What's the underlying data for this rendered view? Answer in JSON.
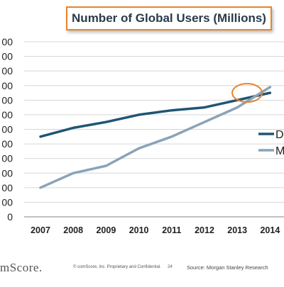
{
  "header": {
    "title": "Number of Global Users (Millions)"
  },
  "footer": {
    "logo": "mScore.",
    "copyright": "© comScore, Inc. Proprietary and Confidential.",
    "page": "24",
    "source": "Source: Morgan Stanley Research"
  },
  "legend": {
    "items": [
      {
        "label": "D",
        "color": "#1f5575"
      },
      {
        "label": "M",
        "color": "#8aa3b8"
      }
    ]
  },
  "chart_data": {
    "type": "line",
    "title": "Number of Global Users (Millions)",
    "x": [
      "2007",
      "2008",
      "2009",
      "2010",
      "2011",
      "2012",
      "2013",
      "2014"
    ],
    "y_tick_labels": [
      "0",
      "00",
      "00",
      "00",
      "00",
      "00",
      "00",
      "00",
      "00",
      "00",
      "00",
      "00",
      "00"
    ],
    "y_index_range": [
      0,
      12
    ],
    "grid": true,
    "legend_position": "right",
    "series": [
      {
        "name": "D",
        "color": "#1f5575",
        "values": [
          5.5,
          6.1,
          6.5,
          7.0,
          7.3,
          7.5,
          8.0,
          8.5
        ]
      },
      {
        "name": "M",
        "color": "#8aa3b8",
        "values": [
          2.0,
          3.0,
          3.5,
          4.7,
          5.5,
          6.5,
          7.5,
          8.9
        ]
      }
    ],
    "annotation": {
      "type": "ellipse-highlight",
      "color": "#e8852b",
      "x": 2013.3,
      "y": 8.5
    }
  }
}
